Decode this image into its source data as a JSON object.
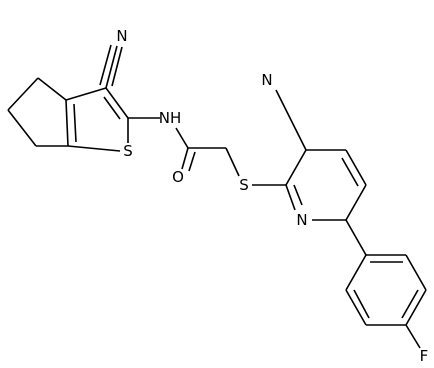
{
  "atoms": [
    {
      "label": "N"
    },
    {
      "label": "NH"
    },
    {
      "label": "S"
    },
    {
      "label": "O"
    },
    {
      "label": "S"
    },
    {
      "label": "N"
    },
    {
      "label": "N"
    },
    {
      "label": "F"
    }
  ]
}
